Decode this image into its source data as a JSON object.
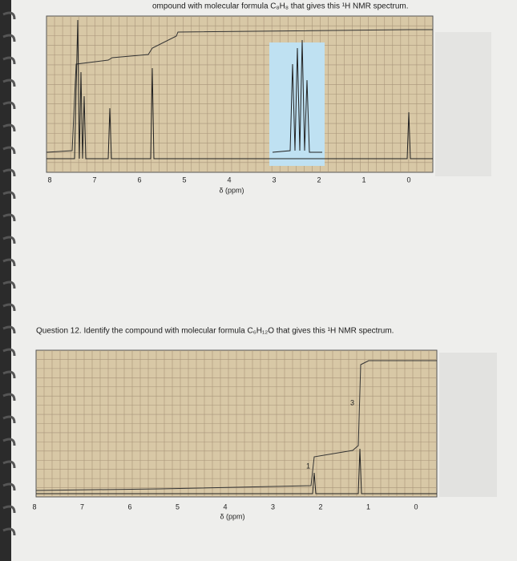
{
  "spectrum_1": {
    "caption": "ompound with molecular formula C₈H₈ that gives this ¹H NMR spectrum.",
    "x_axis_ticks": [
      8,
      7,
      6,
      5,
      4,
      3,
      2,
      1,
      0
    ],
    "x_axis_label": "δ (ppm)"
  },
  "question_12": {
    "text": "Question 12. Identify the compound with molecular formula C₆H₁₂O that gives this ¹H NMR spectrum.",
    "spectrum": {
      "x_axis_ticks": [
        8,
        7,
        6,
        5,
        4,
        3,
        2,
        1,
        0
      ],
      "x_axis_label": "δ (ppm)",
      "integrations": [
        "1",
        "3"
      ]
    }
  }
}
